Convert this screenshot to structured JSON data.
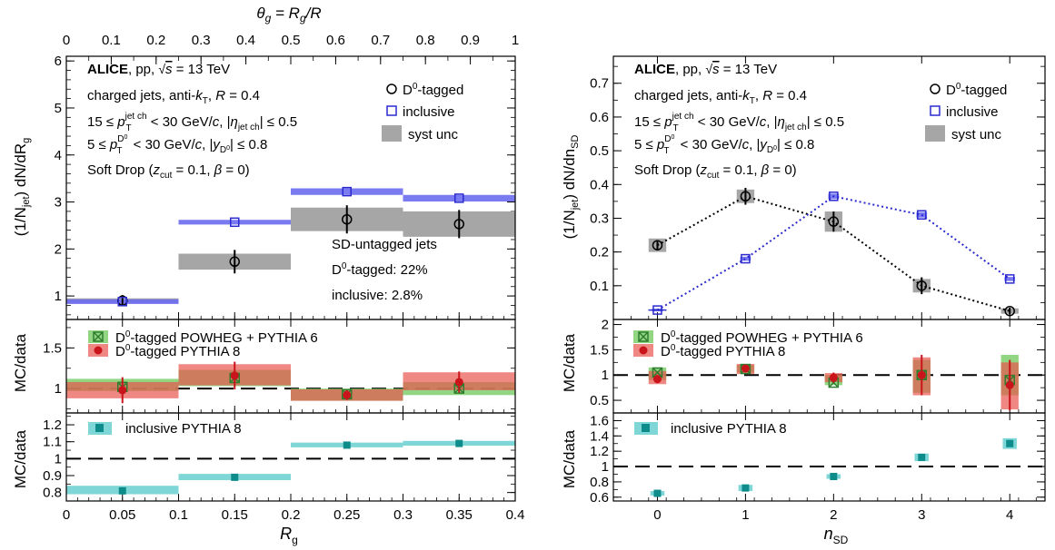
{
  "chart_data": [
    {
      "panel": "left",
      "type": "scatter",
      "top_axis_label": "θ_g = R_g/R",
      "top_axis_ticks": [
        "0",
        "0.1",
        "0.2",
        "0.3",
        "0.4",
        "0.5",
        "0.6",
        "0.7",
        "0.8",
        "0.9",
        "1"
      ],
      "xlabel": "R_g",
      "xlim": [
        0,
        0.4
      ],
      "x_ticks": [
        "0",
        "0.05",
        "0.1",
        "0.15",
        "0.2",
        "0.25",
        "0.3",
        "0.35",
        "0.4"
      ],
      "annotations": [
        "ALICE, pp, √s = 13 TeV",
        "charged jets, anti-k_T, R = 0.4",
        "15 ≤ p_T^jet ch < 30 GeV/c, |η_jet ch| ≤ 0.5",
        "5 ≤ p_T^D0 < 30 GeV/c, |y_D0| ≤ 0.8",
        "Soft Drop (z_cut = 0.1, β = 0)",
        "SD-untagged jets",
        "D0-tagged: 22%",
        "inclusive: 2.8%"
      ],
      "legend": [
        "D0-tagged",
        "inclusive",
        "syst unc"
      ],
      "top": {
        "ylabel": "(1/N_jet) dN/dR_g",
        "ylim": [
          0.5,
          6.1
        ],
        "y_ticks": [
          "1",
          "2",
          "3",
          "4",
          "5",
          "6"
        ],
        "bin_edges": [
          0,
          0.1,
          0.2,
          0.3,
          0.4
        ],
        "series": [
          {
            "name": "D0-tagged",
            "x": [
              0.05,
              0.15,
              0.25,
              0.35
            ],
            "values": [
              0.9,
              1.73,
              2.63,
              2.53
            ],
            "stat_err": [
              0.12,
              0.25,
              0.3,
              0.3
            ],
            "syst_err": [
              0.05,
              0.17,
              0.25,
              0.27
            ]
          },
          {
            "name": "inclusive",
            "x": [
              0.05,
              0.15,
              0.25,
              0.35
            ],
            "values": [
              0.88,
              2.57,
              3.22,
              3.08
            ],
            "stat_err": [
              0.02,
              0.03,
              0.03,
              0.03
            ],
            "syst_err": [
              0.05,
              0.05,
              0.07,
              0.07
            ]
          }
        ]
      },
      "middle": {
        "ylabel": "MC/data",
        "ylim": [
          0.7,
          1.85
        ],
        "y_ticks": [
          "1",
          "1.5"
        ],
        "legend": [
          "D0-tagged POWHEG + PYTHIA 6",
          "D0-tagged PYTHIA 8"
        ],
        "series": [
          {
            "name": "D0-tagged POWHEG + PYTHIA 6",
            "x": [
              0.05,
              0.15,
              0.25,
              0.35
            ],
            "values": [
              1.02,
              1.13,
              0.93,
              1.0
            ],
            "band": [
              [
                0.97,
                1.12
              ],
              [
                1.03,
                1.23
              ],
              [
                0.85,
                1.0
              ],
              [
                0.92,
                1.08
              ]
            ]
          },
          {
            "name": "D0-tagged PYTHIA 8",
            "x": [
              0.05,
              0.15,
              0.25,
              0.35
            ],
            "values": [
              0.98,
              1.16,
              0.92,
              1.08
            ],
            "err": [
              0.16,
              0.17,
              0.06,
              0.13
            ],
            "band": [
              [
                0.88,
                1.08
              ],
              [
                1.04,
                1.3
              ],
              [
                0.85,
                0.99
              ],
              [
                0.98,
                1.2
              ]
            ]
          }
        ]
      },
      "bottom": {
        "ylabel": "MC/data",
        "ylim": [
          0.75,
          1.27
        ],
        "y_ticks": [
          "0.8",
          "0.9",
          "1",
          "1.1",
          "1.2"
        ],
        "legend": [
          "inclusive PYTHIA 8"
        ],
        "series": [
          {
            "name": "inclusive PYTHIA 8",
            "x": [
              0.05,
              0.15,
              0.25,
              0.35
            ],
            "values": [
              0.81,
              0.89,
              1.08,
              1.09
            ],
            "band": [
              [
                0.79,
                0.84
              ],
              [
                0.873,
                0.91
              ],
              [
                1.067,
                1.095
              ],
              [
                1.077,
                1.105
              ]
            ]
          }
        ]
      }
    },
    {
      "panel": "right",
      "type": "scatter",
      "xlabel": "n_SD",
      "xlim": [
        -0.5,
        4.4
      ],
      "x_ticks": [
        "0",
        "1",
        "2",
        "3",
        "4"
      ],
      "annotations": [
        "ALICE, pp, √s = 13 TeV",
        "charged jets, anti-k_T, R = 0.4",
        "15 ≤ p_T^jet ch < 30 GeV/c, |η_jet ch| ≤ 0.5",
        "5 ≤ p_T^D0 < 30 GeV/c, |y_D0| ≤ 0.8",
        "Soft Drop (z_cut = 0.1, β = 0)"
      ],
      "legend": [
        "D0-tagged",
        "inclusive",
        "syst unc"
      ],
      "top": {
        "ylabel": "(1/N_jet) dN/dn_SD",
        "ylim": [
          0,
          0.78
        ],
        "y_ticks": [
          "0.1",
          "0.2",
          "0.3",
          "0.4",
          "0.5",
          "0.6",
          "0.7"
        ],
        "series": [
          {
            "name": "D0-tagged",
            "x": [
              0,
              1,
              2,
              3,
              4
            ],
            "values": [
              0.22,
              0.365,
              0.29,
              0.1,
              0.025
            ],
            "stat_err": [
              0.015,
              0.025,
              0.03,
              0.025,
              0.01
            ],
            "syst_err": [
              0.02,
              0.02,
              0.03,
              0.02,
              0.008
            ]
          },
          {
            "name": "inclusive",
            "x": [
              0,
              1,
              2,
              3,
              4
            ],
            "values": [
              0.028,
              0.18,
              0.365,
              0.31,
              0.12
            ],
            "stat_err": [
              0.003,
              0.003,
              0.004,
              0.004,
              0.003
            ],
            "syst_err": [
              0.004,
              0.006,
              0.008,
              0.008,
              0.006
            ]
          }
        ]
      },
      "middle": {
        "ylabel": "MC/data",
        "ylim": [
          0.25,
          2.1
        ],
        "y_ticks": [
          "0.5",
          "1",
          "1.5",
          "2"
        ],
        "legend": [
          "D0-tagged POWHEG + PYTHIA 6",
          "D0-tagged PYTHIA 8"
        ],
        "series": [
          {
            "name": "D0-tagged POWHEG + PYTHIA 6",
            "x": [
              0,
              1,
              2,
              3,
              4
            ],
            "values": [
              1.05,
              1.12,
              0.85,
              1.0,
              0.9
            ],
            "band": [
              [
                0.9,
                1.15
              ],
              [
                1.05,
                1.2
              ],
              [
                0.8,
                1.0
              ],
              [
                0.65,
                1.3
              ],
              [
                0.6,
                1.4
              ]
            ]
          },
          {
            "name": "D0-tagged PYTHIA 8",
            "x": [
              0,
              1,
              2,
              3,
              4
            ],
            "values": [
              0.92,
              1.13,
              0.95,
              1.0,
              0.8
            ],
            "err": [
              0.08,
              0.06,
              0.1,
              0.4,
              0.5
            ],
            "band": [
              [
                0.82,
                1.08
              ],
              [
                1.02,
                1.22
              ],
              [
                0.86,
                1.04
              ],
              [
                0.6,
                1.35
              ],
              [
                0.32,
                1.25
              ]
            ]
          }
        ]
      },
      "bottom": {
        "ylabel": "MC/data",
        "ylim": [
          0.55,
          1.7
        ],
        "y_ticks": [
          "0.6",
          "0.8",
          "1",
          "1.2",
          "1.4",
          "1.6"
        ],
        "legend": [
          "inclusive PYTHIA 8"
        ],
        "series": [
          {
            "name": "inclusive PYTHIA 8",
            "x": [
              0,
              1,
              2,
              3,
              4
            ],
            "values": [
              0.65,
              0.72,
              0.87,
              1.12,
              1.3
            ],
            "band": [
              [
                0.62,
                0.68
              ],
              [
                0.68,
                0.76
              ],
              [
                0.84,
                0.9
              ],
              [
                1.07,
                1.17
              ],
              [
                1.23,
                1.37
              ]
            ]
          }
        ]
      }
    }
  ]
}
